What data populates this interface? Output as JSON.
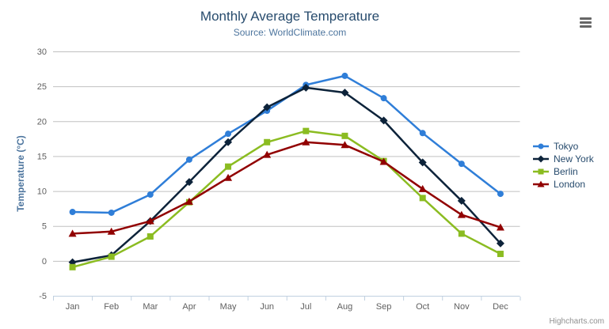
{
  "header": {
    "title": "Monthly Average Temperature",
    "subtitle": "Source: WorldClimate.com"
  },
  "credits": {
    "label": "Highcharts.com"
  },
  "colors": {
    "background": "#ffffff",
    "title": "#274b6d",
    "subtitle": "#4d759e",
    "axis_title": "#4d759e",
    "tick_label": "#606060",
    "grid_line": "#c0c0c0",
    "axis_line": "#c0d0e0",
    "legend_text": "#274b6d",
    "credits_text": "#909090",
    "menu_icon": "#666666"
  },
  "chart_data": {
    "type": "line",
    "title": "Monthly Average Temperature",
    "subtitle": "Source: WorldClimate.com",
    "xlabel": "",
    "ylabel": "Temperature (°C)",
    "categories": [
      "Jan",
      "Feb",
      "Mar",
      "Apr",
      "May",
      "Jun",
      "Jul",
      "Aug",
      "Sep",
      "Oct",
      "Nov",
      "Dec"
    ],
    "yticks": [
      -5,
      0,
      5,
      10,
      15,
      20,
      25,
      30
    ],
    "ylim": [
      -5,
      30
    ],
    "grid": true,
    "legend_position": "right",
    "series": [
      {
        "name": "Tokyo",
        "color": "#2f7ed8",
        "marker": "circle",
        "values": [
          7.0,
          6.9,
          9.5,
          14.5,
          18.2,
          21.5,
          25.2,
          26.5,
          23.3,
          18.3,
          13.9,
          9.6
        ]
      },
      {
        "name": "New York",
        "color": "#0d233a",
        "marker": "diamond",
        "values": [
          -0.2,
          0.8,
          5.7,
          11.3,
          17.0,
          22.0,
          24.8,
          24.1,
          20.1,
          14.1,
          8.6,
          2.5
        ]
      },
      {
        "name": "Berlin",
        "color": "#8bbc21",
        "marker": "square",
        "values": [
          -0.9,
          0.6,
          3.5,
          8.4,
          13.5,
          17.0,
          18.6,
          17.9,
          14.3,
          9.0,
          3.9,
          1.0
        ]
      },
      {
        "name": "London",
        "color": "#910000",
        "marker": "triangle",
        "values": [
          3.9,
          4.2,
          5.7,
          8.5,
          11.9,
          15.2,
          17.0,
          16.6,
          14.2,
          10.3,
          6.6,
          4.8
        ]
      }
    ]
  }
}
